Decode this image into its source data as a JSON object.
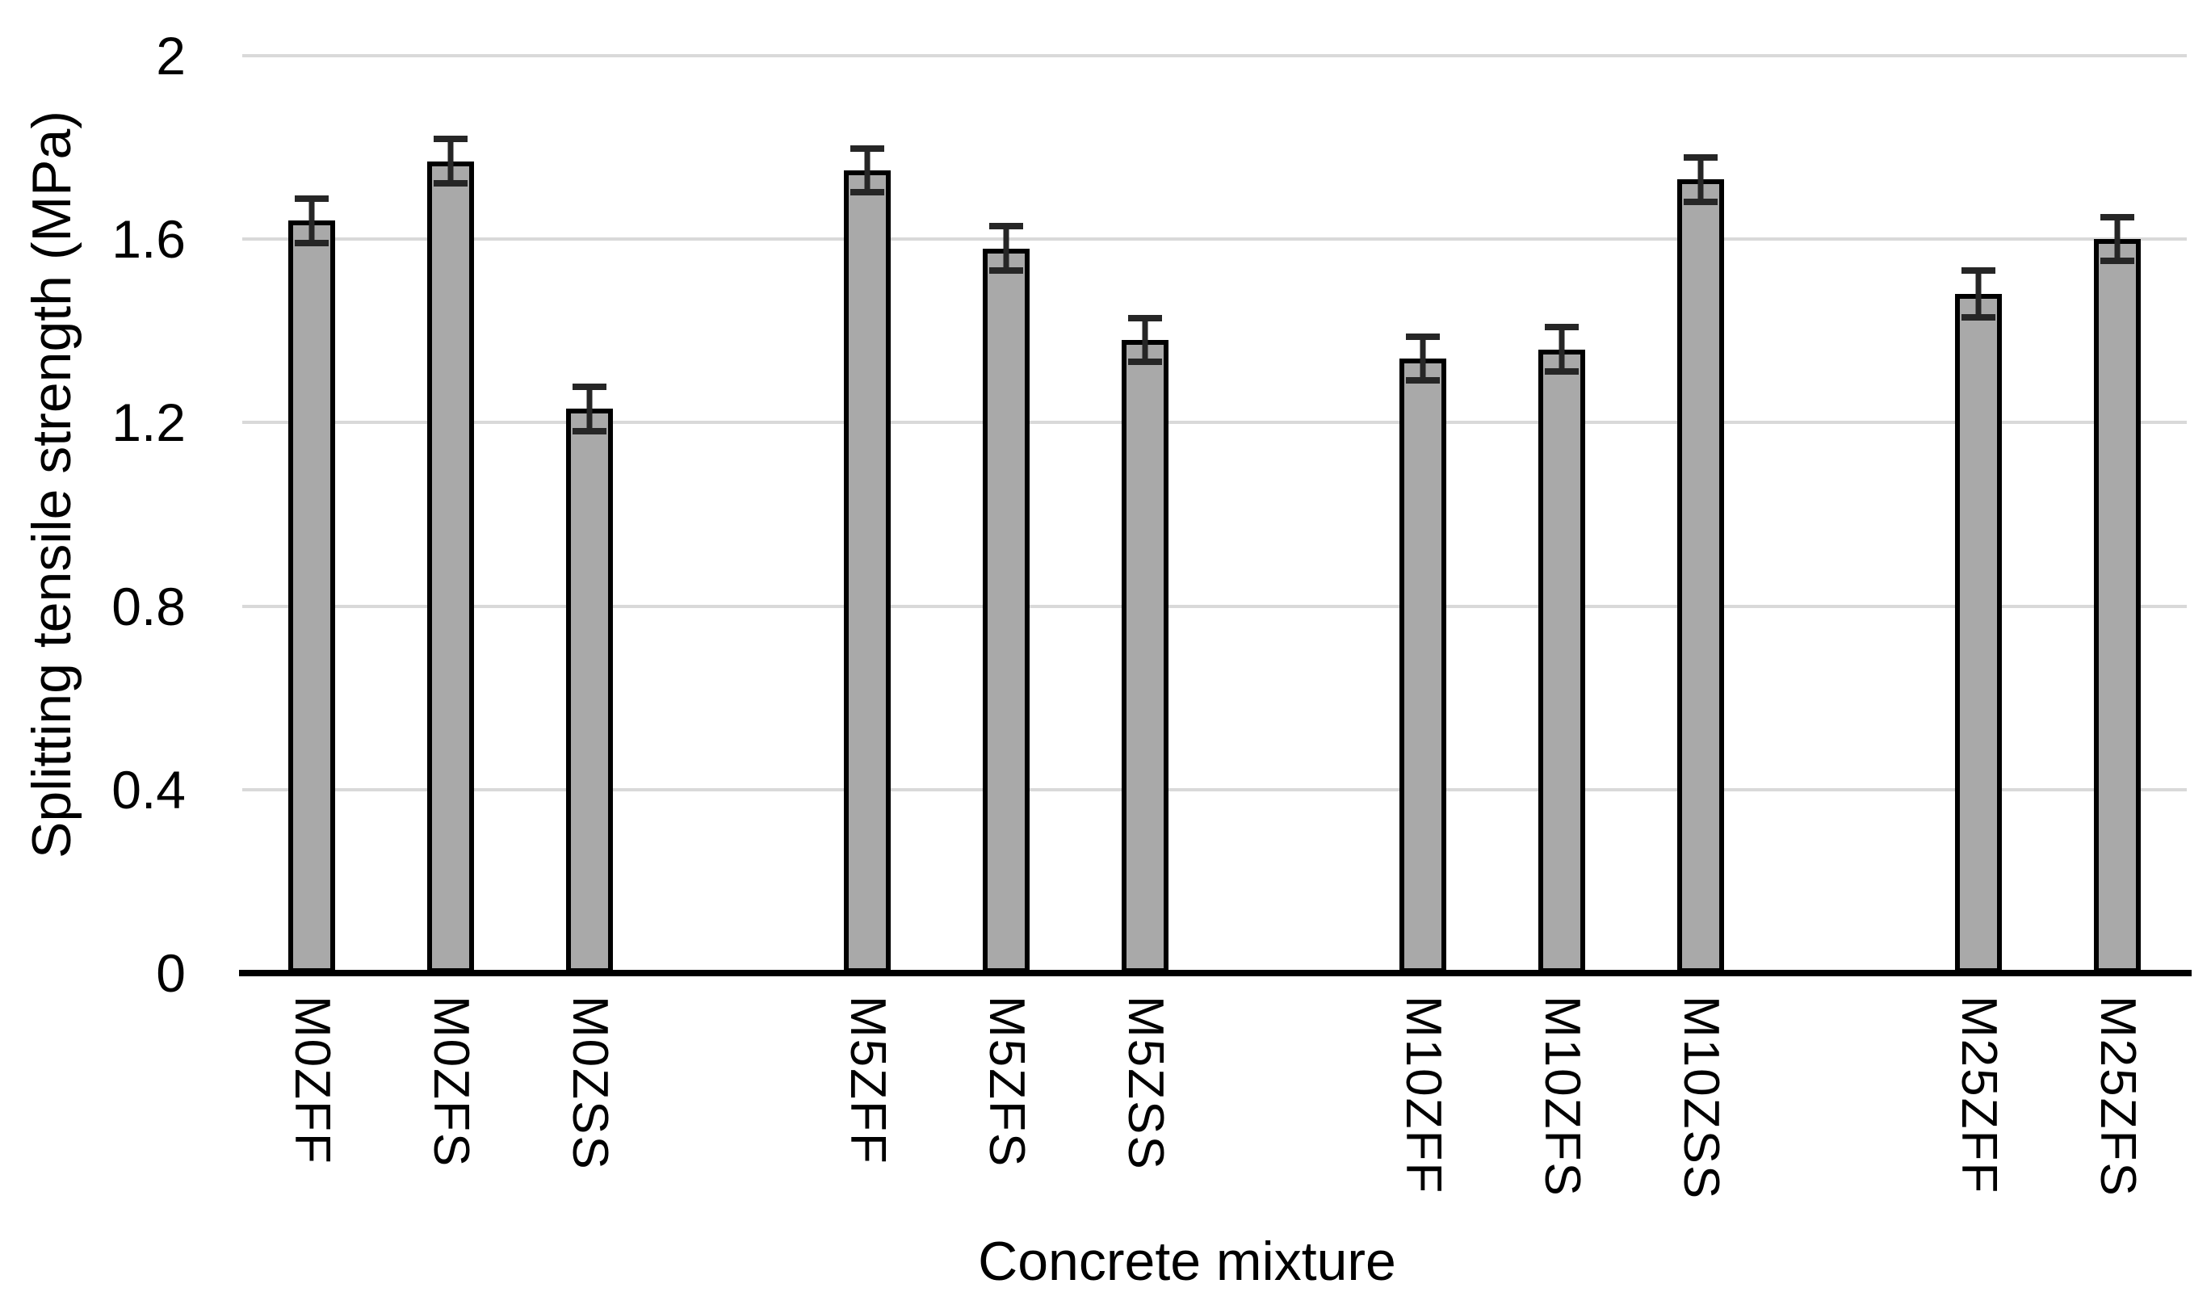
{
  "chart_data": {
    "type": "bar",
    "title": "",
    "xlabel": "Concrete mixture",
    "ylabel": "Splitting tensile strength (MPa)",
    "ylim": [
      0,
      2
    ],
    "yticks": [
      "0",
      "0.4",
      "0.8",
      "1.2",
      "1.6",
      "2"
    ],
    "ytick_values": [
      0,
      0.4,
      0.8,
      1.2,
      1.6,
      2
    ],
    "grid": "horizontal",
    "legend": "none",
    "categories": [
      "M0ZFF",
      "M0ZFS",
      "M0ZSS",
      "M5ZFF",
      "M5ZFS",
      "M5ZSS",
      "M10ZFF",
      "M10ZFS",
      "M10ZSS",
      "M25ZFF",
      "M25ZFS"
    ],
    "values": [
      1.64,
      1.77,
      1.23,
      1.75,
      1.58,
      1.38,
      1.34,
      1.36,
      1.73,
      1.48,
      1.6
    ],
    "error_bars": [
      0.055,
      0.055,
      0.055,
      0.055,
      0.055,
      0.055,
      0.055,
      0.055,
      0.055,
      0.058,
      0.055
    ],
    "group_slots": [
      0,
      1,
      2,
      4,
      5,
      6,
      8,
      9,
      10,
      12,
      13
    ],
    "total_slots": 14,
    "colors": {
      "bar_fill": "#a9a9a9",
      "bar_border": "#000000",
      "gridline": "#d9d9d9",
      "axis_line": "#000000",
      "error_bar": "#262626",
      "text": "#000000",
      "background": "#ffffff"
    }
  }
}
